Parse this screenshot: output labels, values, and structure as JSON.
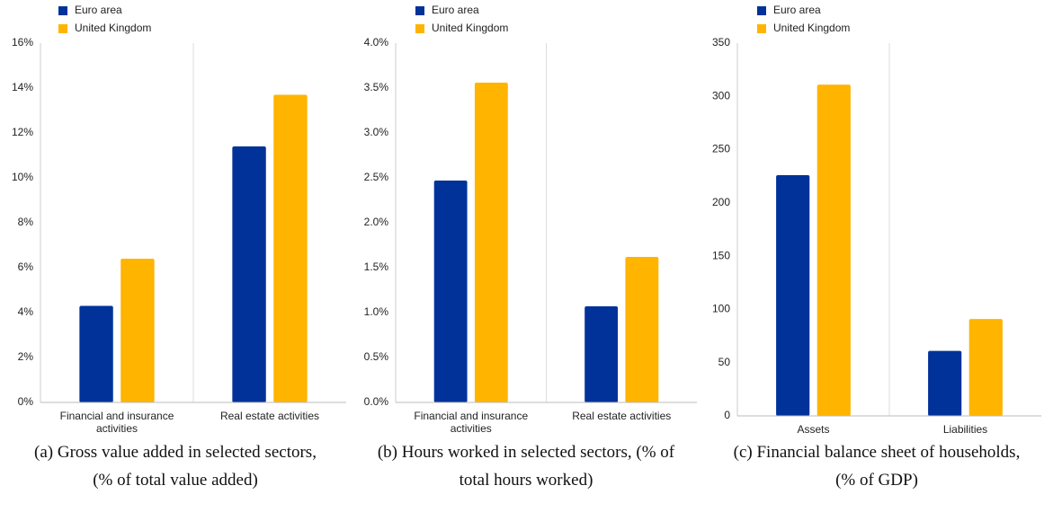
{
  "chart_data": [
    {
      "type": "bar",
      "caption": "(a) Gross value added in selected sectors, (% of total value added)",
      "categories": [
        "Financial and insurance activities",
        "Real estate activities"
      ],
      "series": [
        {
          "name": "Euro area",
          "color": "#003299",
          "values": [
            4.3,
            11.4
          ]
        },
        {
          "name": "United Kingdom",
          "color": "#ffb400",
          "values": [
            6.4,
            13.7
          ]
        }
      ],
      "ylim": [
        0,
        16
      ],
      "yticks": [
        {
          "value": 0,
          "label": "0%"
        },
        {
          "value": 2,
          "label": "2%"
        },
        {
          "value": 4,
          "label": "4%"
        },
        {
          "value": 6,
          "label": "6%"
        },
        {
          "value": 8,
          "label": "8%"
        },
        {
          "value": 10,
          "label": "10%"
        },
        {
          "value": 12,
          "label": "12%"
        },
        {
          "value": 14,
          "label": "14%"
        },
        {
          "value": 16,
          "label": "16%"
        }
      ],
      "grid": false,
      "legend": "top-left"
    },
    {
      "type": "bar",
      "caption": "(b) Hours worked in selected sectors, (% of total hours worked)",
      "categories": [
        "Financial and insurance activities",
        "Real estate activities"
      ],
      "series": [
        {
          "name": "Euro area",
          "color": "#003299",
          "values": [
            2.47,
            1.07
          ]
        },
        {
          "name": "United Kingdom",
          "color": "#ffb400",
          "values": [
            3.56,
            1.62
          ]
        }
      ],
      "ylim": [
        0,
        4
      ],
      "yticks": [
        {
          "value": 0,
          "label": "0.0%"
        },
        {
          "value": 0.5,
          "label": "0.5%"
        },
        {
          "value": 1,
          "label": "1.0%"
        },
        {
          "value": 1.5,
          "label": "1.5%"
        },
        {
          "value": 2,
          "label": "2.0%"
        },
        {
          "value": 2.5,
          "label": "2.5%"
        },
        {
          "value": 3,
          "label": "3.0%"
        },
        {
          "value": 3.5,
          "label": "3.5%"
        },
        {
          "value": 4,
          "label": "4.0%"
        }
      ],
      "grid": false,
      "legend": "top-left"
    },
    {
      "type": "bar",
      "caption": "(c) Financial balance sheet of households, (% of GDP)",
      "categories": [
        "Assets",
        "Liabilities"
      ],
      "series": [
        {
          "name": "Euro area",
          "color": "#003299",
          "values": [
            226,
            61
          ]
        },
        {
          "name": "United Kingdom",
          "color": "#ffb400",
          "values": [
            311,
            91
          ]
        }
      ],
      "ylim": [
        0,
        350
      ],
      "yticks": [
        0,
        50,
        100,
        150,
        200,
        250,
        300,
        350
      ],
      "grid": false,
      "legend": "top-left"
    }
  ]
}
